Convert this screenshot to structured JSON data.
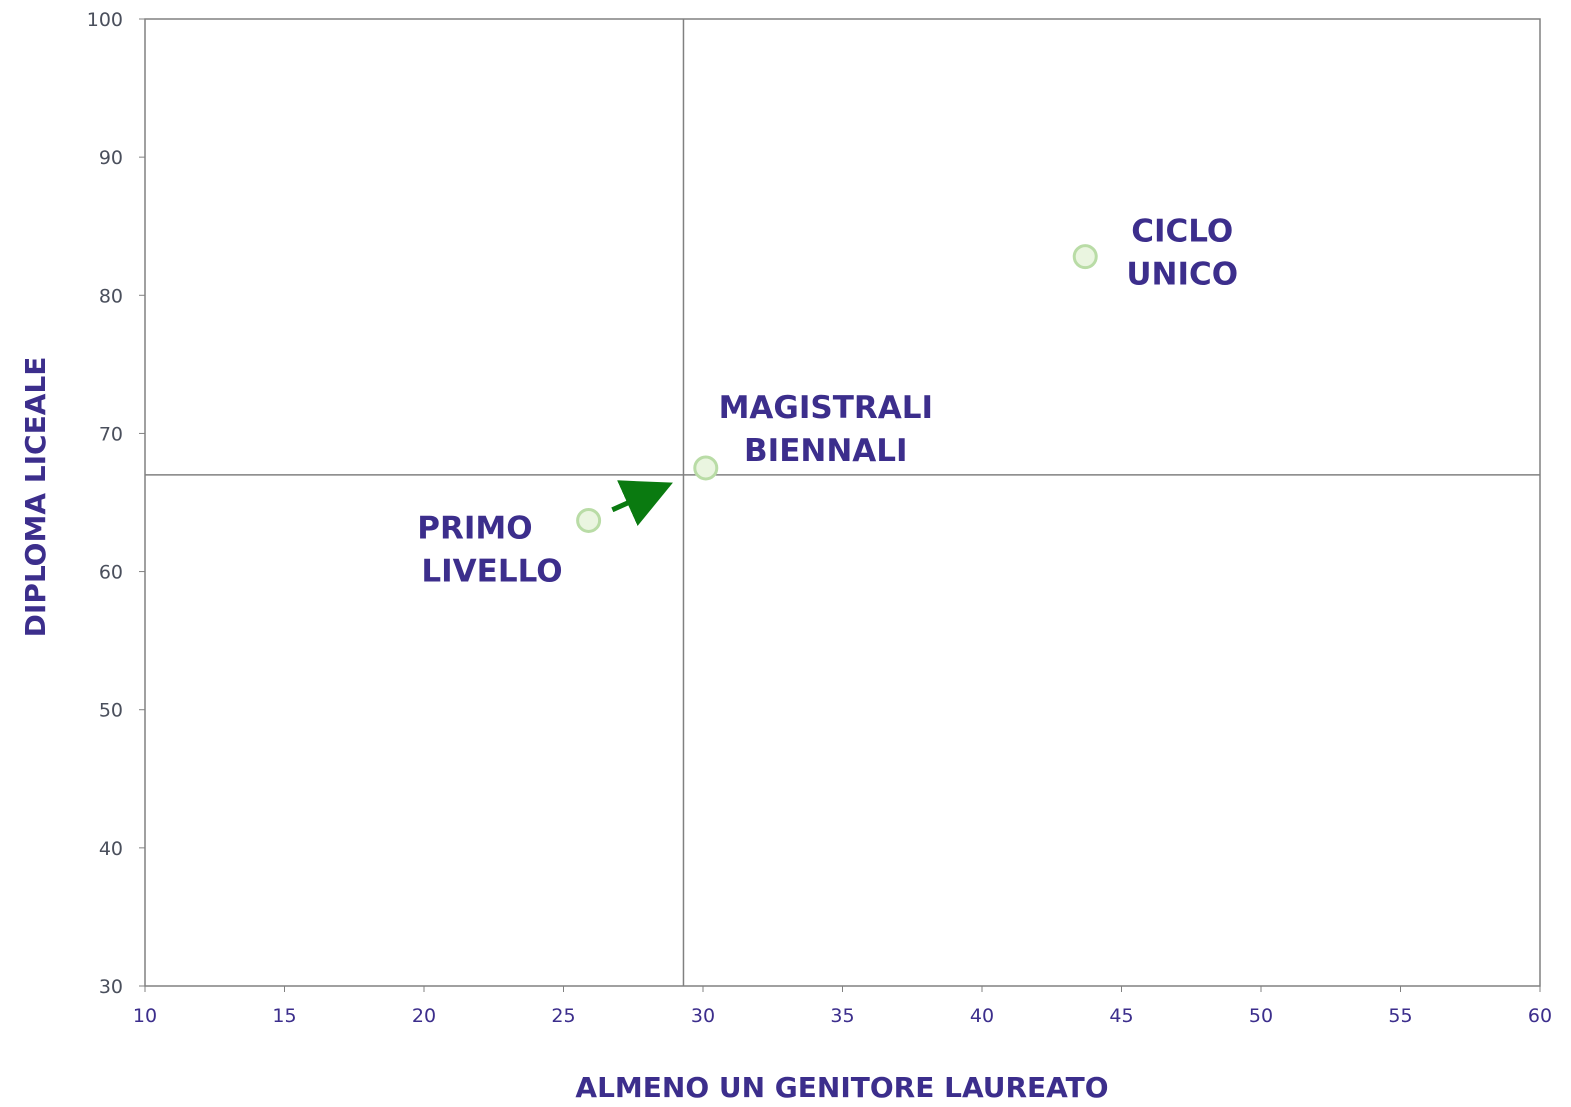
{
  "chart_data": {
    "type": "scatter",
    "title": "",
    "xlabel": "ALMENO UN GENITORE LAUREATO",
    "ylabel": "DIPLOMA LICEALE",
    "xlim": [
      10,
      60
    ],
    "ylim": [
      30,
      100
    ],
    "x_ticks": [
      "10",
      "15",
      "20",
      "25",
      "30",
      "35",
      "40",
      "45",
      "50",
      "55",
      "60"
    ],
    "y_ticks": [
      "30",
      "40",
      "50",
      "60",
      "70",
      "80",
      "90",
      "100"
    ],
    "grid": false,
    "reference_lines": {
      "x": 29.3,
      "y": 67
    },
    "points": [
      {
        "label_lines": [
          "PRIMO",
          "LIVELLO"
        ],
        "x": 25.9,
        "y": 63.7,
        "label_position": "bottom-left"
      },
      {
        "label_lines": [
          "MAGISTRALI",
          "BIENNALI"
        ],
        "x": 30.1,
        "y": 67.5,
        "label_position": "top-right"
      },
      {
        "label_lines": [
          "CICLO",
          "UNICO"
        ],
        "x": 43.7,
        "y": 82.8,
        "label_position": "right"
      }
    ],
    "arrow": {
      "from": "PRIMO LIVELLO",
      "to": "MAGISTRALI BIENNALI",
      "color": "#0a7a10"
    },
    "colors": {
      "text": "#3c2e8c",
      "marker_fill": "#eaf5e0",
      "marker_stroke": "#b9dca6",
      "lines": "#808080"
    }
  }
}
